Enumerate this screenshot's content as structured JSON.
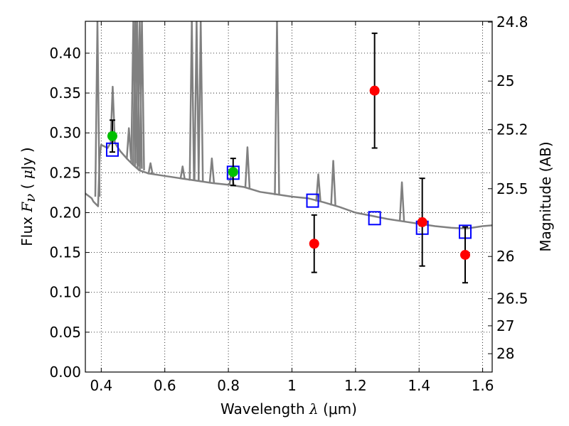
{
  "chart_data": {
    "type": "scatter",
    "xlim": [
      0.35,
      1.63
    ],
    "ylim": [
      0.0,
      0.44
    ],
    "grid": true,
    "xticks": [
      0.4,
      0.6,
      0.8,
      1.0,
      1.2,
      1.4,
      1.6
    ],
    "xtick_labels": [
      "0.4",
      "0.6",
      "0.8",
      "1",
      "1.2",
      "1.4",
      "1.6"
    ],
    "yticks": [
      0.0,
      0.05,
      0.1,
      0.15,
      0.2,
      0.25,
      0.3,
      0.35,
      0.4
    ],
    "ytick_labels": [
      "0.00",
      "0.05",
      "0.10",
      "0.15",
      "0.20",
      "0.25",
      "0.30",
      "0.35",
      "0.40"
    ],
    "xlabel": {
      "prefix": "Wavelength ",
      "symbol": "λ",
      "unit": " (",
      "mu": "μ",
      "unit_end": "m)"
    },
    "ylabel": {
      "prefix": "Flux ",
      "symbol": "F",
      "sub": "ν",
      "unit_open": " ( ",
      "mu": "μ",
      "unit": "Jy )"
    },
    "right_axis": {
      "label": "Magnitude (AB)",
      "ticks": [
        {
          "label": "24.8",
          "flux": 0.439
        },
        {
          "label": "25",
          "flux": 0.365
        },
        {
          "label": "25.2",
          "flux": 0.304
        },
        {
          "label": "25.5",
          "flux": 0.23
        },
        {
          "label": "26",
          "flux": 0.145
        },
        {
          "label": "26.5",
          "flux": 0.092
        },
        {
          "label": "27",
          "flux": 0.058
        },
        {
          "label": "28",
          "flux": 0.023
        }
      ]
    },
    "series": [
      {
        "name": "model spectrum",
        "kind": "line",
        "color": "#808080",
        "x": [
          0.35,
          0.37,
          0.375,
          0.38,
          0.39,
          0.395,
          0.4,
          0.41,
          0.42,
          0.43,
          0.44,
          0.45,
          0.46,
          0.48,
          0.5,
          0.52,
          0.55,
          0.6,
          0.65,
          0.7,
          0.75,
          0.8,
          0.85,
          0.9,
          0.95,
          1.0,
          1.05,
          1.1,
          1.15,
          1.2,
          1.25,
          1.3,
          1.35,
          1.4,
          1.45,
          1.5,
          1.55,
          1.6,
          1.63
        ],
        "y": [
          0.224,
          0.218,
          0.214,
          0.212,
          0.208,
          0.27,
          0.285,
          0.283,
          0.281,
          0.288,
          0.29,
          0.283,
          0.277,
          0.268,
          0.26,
          0.253,
          0.249,
          0.246,
          0.243,
          0.24,
          0.237,
          0.235,
          0.232,
          0.226,
          0.223,
          0.22,
          0.218,
          0.213,
          0.207,
          0.2,
          0.196,
          0.192,
          0.189,
          0.186,
          0.183,
          0.181,
          0.18,
          0.183,
          0.184
        ]
      },
      {
        "name": "emission lines",
        "kind": "spikes",
        "color": "#808080",
        "lines": [
          {
            "x": 0.388,
            "top": 0.44,
            "base": 0.22
          },
          {
            "x": 0.436,
            "top": 0.358,
            "base": 0.289
          },
          {
            "x": 0.487,
            "top": 0.306,
            "base": 0.267
          },
          {
            "x": 0.501,
            "top": 0.44,
            "base": 0.262
          },
          {
            "x": 0.507,
            "top": 0.44,
            "base": 0.26
          },
          {
            "x": 0.513,
            "top": 0.44,
            "base": 0.258
          },
          {
            "x": 0.521,
            "top": 0.44,
            "base": 0.255
          },
          {
            "x": 0.528,
            "top": 0.44,
            "base": 0.253
          },
          {
            "x": 0.555,
            "top": 0.262,
            "base": 0.248
          },
          {
            "x": 0.656,
            "top": 0.258,
            "base": 0.242
          },
          {
            "x": 0.685,
            "top": 0.44,
            "base": 0.24
          },
          {
            "x": 0.7,
            "top": 0.44,
            "base": 0.24
          },
          {
            "x": 0.713,
            "top": 0.44,
            "base": 0.239
          },
          {
            "x": 0.748,
            "top": 0.268,
            "base": 0.237
          },
          {
            "x": 0.81,
            "top": 0.253,
            "base": 0.234
          },
          {
            "x": 0.86,
            "top": 0.282,
            "base": 0.231
          },
          {
            "x": 0.953,
            "top": 0.44,
            "base": 0.222
          },
          {
            "x": 1.083,
            "top": 0.248,
            "base": 0.214
          },
          {
            "x": 1.13,
            "top": 0.265,
            "base": 0.209
          },
          {
            "x": 1.346,
            "top": 0.238,
            "base": 0.189
          }
        ]
      },
      {
        "name": "model photometry",
        "kind": "marker",
        "marker": "square",
        "color": "#0000ff",
        "x": [
          0.435,
          0.815,
          1.065,
          1.26,
          1.41,
          1.545
        ],
        "y": [
          0.279,
          0.25,
          0.215,
          0.193,
          0.181,
          0.176
        ]
      },
      {
        "name": "observed (green)",
        "kind": "marker",
        "marker": "circle",
        "color": "#00bf00",
        "x": [
          0.435,
          0.815
        ],
        "y": [
          0.296,
          0.251
        ],
        "yerr": [
          0.02,
          0.017
        ]
      },
      {
        "name": "observed (red)",
        "kind": "marker",
        "marker": "circle",
        "color": "#ff0000",
        "x": [
          1.07,
          1.26,
          1.41,
          1.545
        ],
        "y": [
          0.161,
          0.353,
          0.188,
          0.147
        ],
        "yerr": [
          0.036,
          0.072,
          0.055,
          0.035
        ]
      }
    ]
  }
}
